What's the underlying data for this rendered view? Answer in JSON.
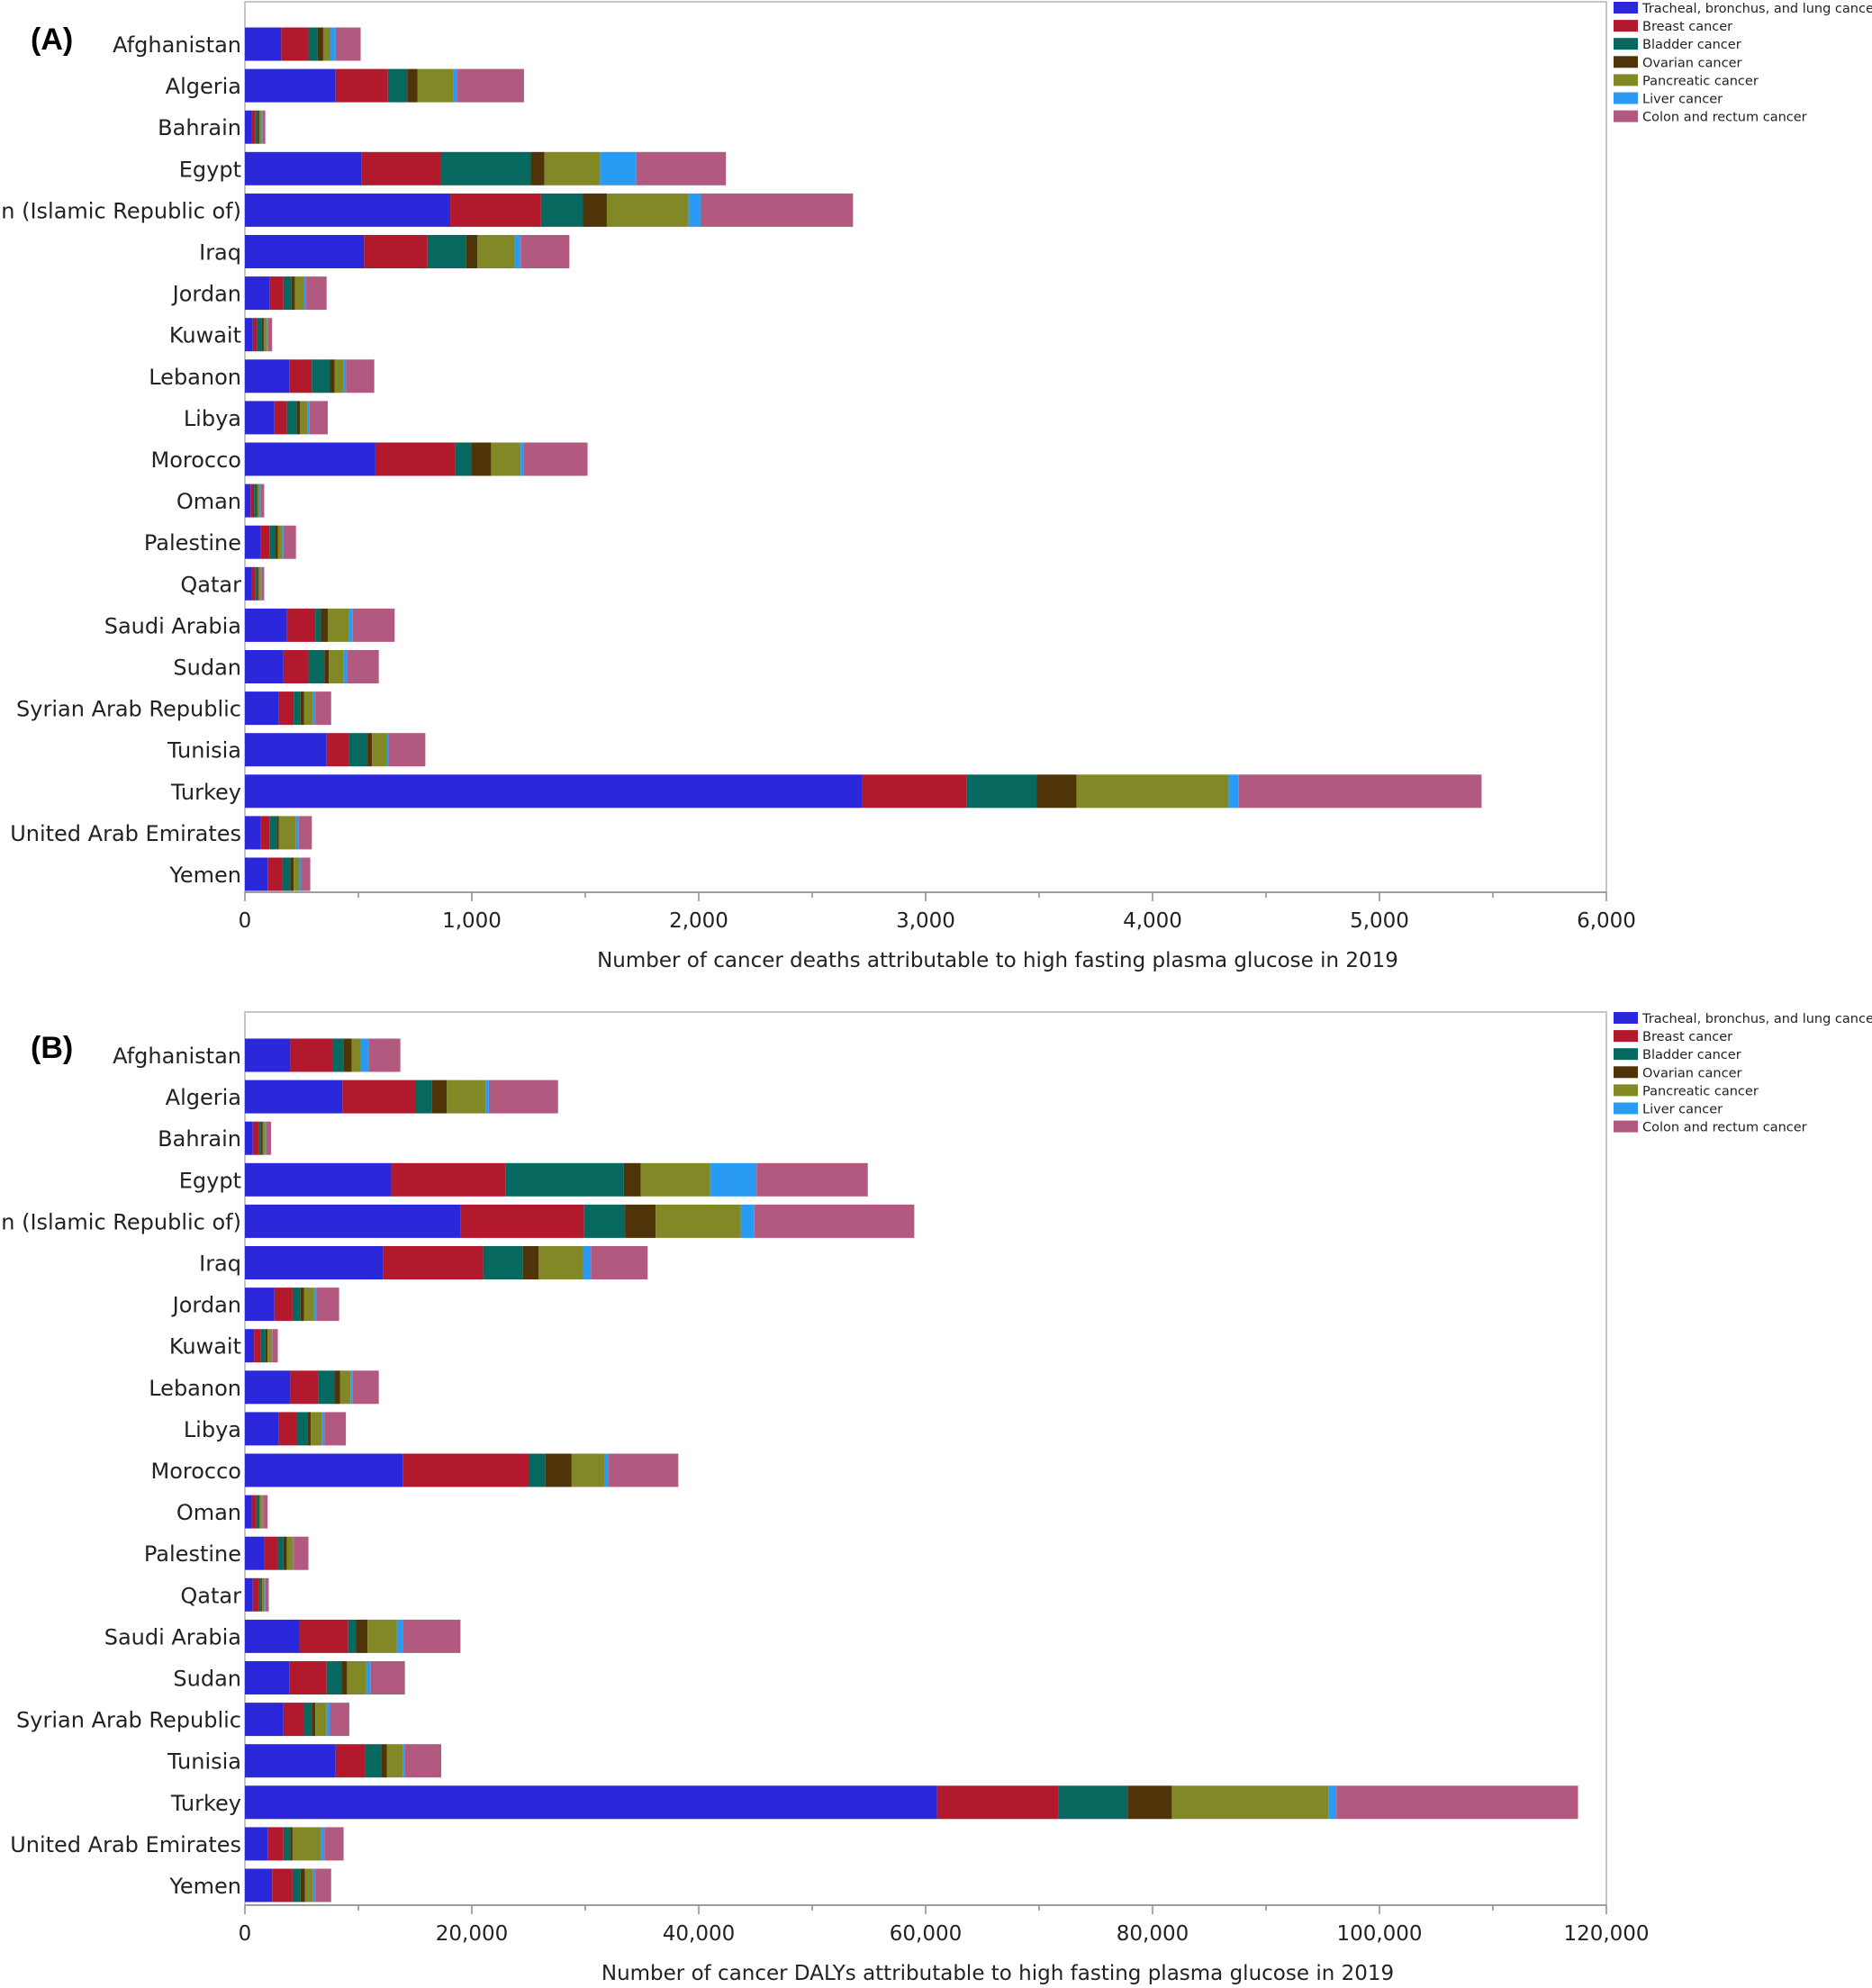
{
  "chart_data": [
    {
      "type": "bar",
      "orientation": "horizontal",
      "stacked": true,
      "panel_label": "(A)",
      "title": "",
      "xlabel": "Number of cancer deaths attributable to high fasting plasma glucose in 2019",
      "ylabel": "",
      "xlim": [
        0,
        6000
      ],
      "x_ticks": [
        0,
        1000,
        2000,
        3000,
        4000,
        5000,
        6000
      ],
      "x_tick_labels": [
        "0",
        "1,000",
        "2,000",
        "3,000",
        "4,000",
        "5,000",
        "6,000"
      ],
      "grid": false,
      "legend_position": "top-right",
      "categories": [
        "Afghanistan",
        "Algeria",
        "Bahrain",
        "Egypt",
        "Iran (Islamic Republic of)",
        "Iraq",
        "Jordan",
        "Kuwait",
        "Lebanon",
        "Libya",
        "Morocco",
        "Oman",
        "Palestine",
        "Qatar",
        "Saudi Arabia",
        "Sudan",
        "Syrian Arab Republic",
        "Tunisia",
        "Turkey",
        "United Arab Emirates",
        "Yemen"
      ],
      "series": [
        {
          "name": "Tracheal, bronchus, and lung cancer",
          "color": "#2b28db",
          "values": [
            160,
            400,
            30,
            515,
            905,
            525,
            110,
            35,
            195,
            130,
            575,
            25,
            70,
            30,
            185,
            170,
            150,
            360,
            2720,
            70,
            100
          ]
        },
        {
          "name": "Breast cancer",
          "color": "#b3192c",
          "values": [
            120,
            230,
            15,
            350,
            400,
            280,
            60,
            20,
            100,
            55,
            350,
            15,
            40,
            15,
            125,
            110,
            65,
            100,
            460,
            40,
            65
          ]
        },
        {
          "name": "Bladder cancer",
          "color": "#06685e",
          "values": [
            40,
            85,
            10,
            395,
            185,
            170,
            35,
            20,
            80,
            45,
            75,
            10,
            25,
            10,
            25,
            70,
            30,
            80,
            310,
            30,
            35
          ]
        },
        {
          "name": "Ovarian cancer",
          "color": "#4f3309",
          "values": [
            25,
            45,
            8,
            60,
            105,
            50,
            15,
            8,
            20,
            12,
            85,
            5,
            10,
            5,
            30,
            20,
            15,
            20,
            175,
            10,
            15
          ]
        },
        {
          "name": "Pancreatic cancer",
          "color": "#828826",
          "values": [
            30,
            160,
            10,
            245,
            360,
            165,
            40,
            15,
            40,
            35,
            130,
            10,
            20,
            10,
            95,
            65,
            40,
            65,
            670,
            75,
            25
          ]
        },
        {
          "name": "Liver cancer",
          "color": "#2a9bf2",
          "values": [
            25,
            15,
            3,
            160,
            55,
            25,
            10,
            4,
            10,
            8,
            15,
            3,
            5,
            3,
            15,
            15,
            10,
            10,
            45,
            10,
            8
          ]
        },
        {
          "name": "Colon and rectum cancer",
          "color": "#b2597f",
          "values": [
            110,
            295,
            14,
            395,
            670,
            215,
            90,
            18,
            125,
            80,
            280,
            17,
            55,
            12,
            185,
            140,
            70,
            160,
            1070,
            60,
            40
          ]
        }
      ]
    },
    {
      "type": "bar",
      "orientation": "horizontal",
      "stacked": true,
      "panel_label": "(B)",
      "title": "",
      "xlabel": "Number of cancer DALYs attributable to high fasting plasma glucose in 2019",
      "ylabel": "",
      "xlim": [
        0,
        120000
      ],
      "x_ticks": [
        0,
        20000,
        40000,
        60000,
        80000,
        100000,
        120000
      ],
      "x_tick_labels": [
        "0",
        "20,000",
        "40,000",
        "60,000",
        "80,000",
        "100,000",
        "120,000"
      ],
      "grid": false,
      "legend_position": "top-right",
      "categories": [
        "Afghanistan",
        "Algeria",
        "Bahrain",
        "Egypt",
        "Iran (Islamic Republic of)",
        "Iraq",
        "Jordan",
        "Kuwait",
        "Lebanon",
        "Libya",
        "Morocco",
        "Oman",
        "Palestine",
        "Qatar",
        "Saudi Arabia",
        "Sudan",
        "Syrian Arab Republic",
        "Tunisia",
        "Turkey",
        "United Arab Emirates",
        "Yemen"
      ],
      "series": [
        {
          "name": "Tracheal, bronchus, and lung cancer",
          "color": "#2b28db",
          "values": [
            4000,
            8600,
            700,
            12900,
            19000,
            12200,
            2600,
            800,
            4000,
            3000,
            13900,
            600,
            1700,
            700,
            4800,
            3900,
            3400,
            8000,
            61000,
            2000,
            2400
          ]
        },
        {
          "name": "Breast cancer",
          "color": "#b3192c",
          "values": [
            3700,
            6400,
            500,
            10100,
            10900,
            8800,
            1600,
            600,
            2500,
            1600,
            11100,
            400,
            1200,
            500,
            4300,
            3300,
            1800,
            2600,
            10700,
            1400,
            1800
          ]
        },
        {
          "name": "Bladder cancer",
          "color": "#06685e",
          "values": [
            1000,
            1500,
            200,
            10400,
            3600,
            3500,
            700,
            400,
            1400,
            900,
            1500,
            200,
            500,
            200,
            700,
            1300,
            700,
            1400,
            6100,
            600,
            700
          ]
        },
        {
          "name": "Ovarian cancer",
          "color": "#4f3309",
          "values": [
            700,
            1300,
            150,
            1500,
            2700,
            1400,
            300,
            200,
            500,
            300,
            2300,
            100,
            300,
            100,
            1000,
            500,
            300,
            500,
            3900,
            200,
            400
          ]
        },
        {
          "name": "Pancreatic cancer",
          "color": "#828826",
          "values": [
            800,
            3400,
            250,
            6100,
            7500,
            3900,
            900,
            300,
            900,
            1000,
            2900,
            200,
            500,
            200,
            2600,
            1700,
            1000,
            1400,
            13800,
            2500,
            700
          ]
        },
        {
          "name": "Liver cancer",
          "color": "#2a9bf2",
          "values": [
            700,
            300,
            100,
            4100,
            1200,
            700,
            200,
            100,
            200,
            200,
            300,
            100,
            100,
            100,
            500,
            400,
            300,
            200,
            700,
            300,
            200
          ]
        },
        {
          "name": "Colon and rectum cancer",
          "color": "#b2597f",
          "values": [
            2800,
            6100,
            400,
            9800,
            14100,
            5000,
            2000,
            500,
            2300,
            1900,
            6200,
            400,
            1300,
            300,
            5100,
            3000,
            1700,
            3200,
            21300,
            1700,
            1400
          ]
        }
      ]
    }
  ]
}
